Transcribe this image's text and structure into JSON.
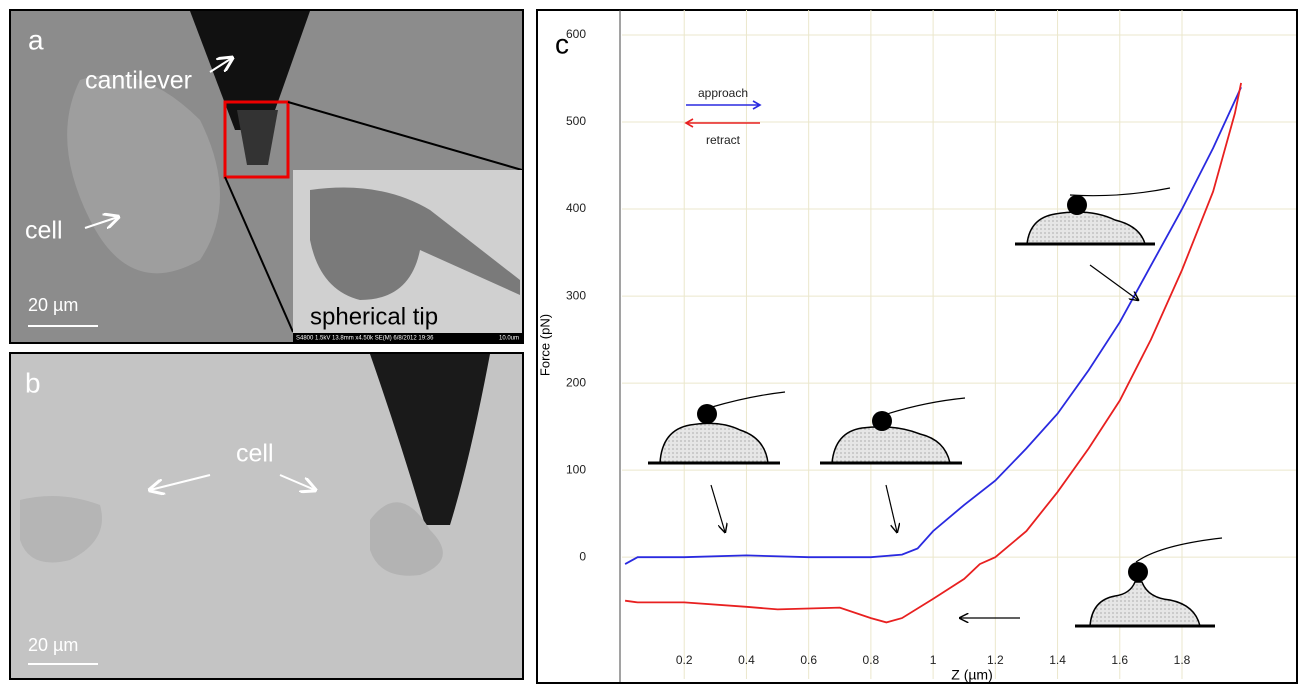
{
  "panels": [
    {
      "label": "a",
      "annotations": [
        "cantilever",
        "cell"
      ],
      "scale_bar": "20 µm",
      "inset": {
        "label": "spherical tip",
        "info": "S4800 1.5kV 13.8mm x4.50k SE(M) 6/8/2012 19:36",
        "scale": "10.0um"
      }
    },
    {
      "label": "b",
      "annotations": [
        "cell"
      ],
      "scale_bar": "20 µm"
    }
  ],
  "chart_data": {
    "type": "line",
    "panel_label": "c",
    "xlabel": "Z (µm)",
    "ylabel": "Force (pN)",
    "xlim": [
      0,
      2.16
    ],
    "ylim": [
      -140,
      600
    ],
    "xticks": [
      0.2,
      0.4,
      0.6,
      0.8,
      1,
      1.2,
      1.4,
      1.6,
      1.8
    ],
    "yticks": [
      0,
      100,
      200,
      300,
      400,
      500,
      600
    ],
    "grid": true,
    "series": [
      {
        "name": "approach",
        "color": "#2a2ae0",
        "x": [
          0.01,
          0.05,
          0.2,
          0.4,
          0.6,
          0.8,
          0.9,
          0.95,
          1.0,
          1.1,
          1.2,
          1.3,
          1.4,
          1.5,
          1.6,
          1.7,
          1.8,
          1.9,
          1.99
        ],
        "values": [
          -8,
          0,
          0,
          2,
          0,
          0,
          3,
          10,
          30,
          60,
          88,
          125,
          165,
          215,
          270,
          335,
          400,
          470,
          540
        ]
      },
      {
        "name": "retract",
        "color": "#e82020",
        "x": [
          0.01,
          0.05,
          0.2,
          0.4,
          0.5,
          0.7,
          0.8,
          0.85,
          0.9,
          1.0,
          1.1,
          1.15,
          1.2,
          1.3,
          1.4,
          1.5,
          1.6,
          1.7,
          1.8,
          1.9,
          1.97,
          1.99
        ],
        "values": [
          -50,
          -52,
          -52,
          -57,
          -60,
          -58,
          -70,
          -75,
          -70,
          -48,
          -25,
          -8,
          0,
          30,
          75,
          125,
          180,
          250,
          330,
          420,
          510,
          545
        ]
      }
    ]
  }
}
